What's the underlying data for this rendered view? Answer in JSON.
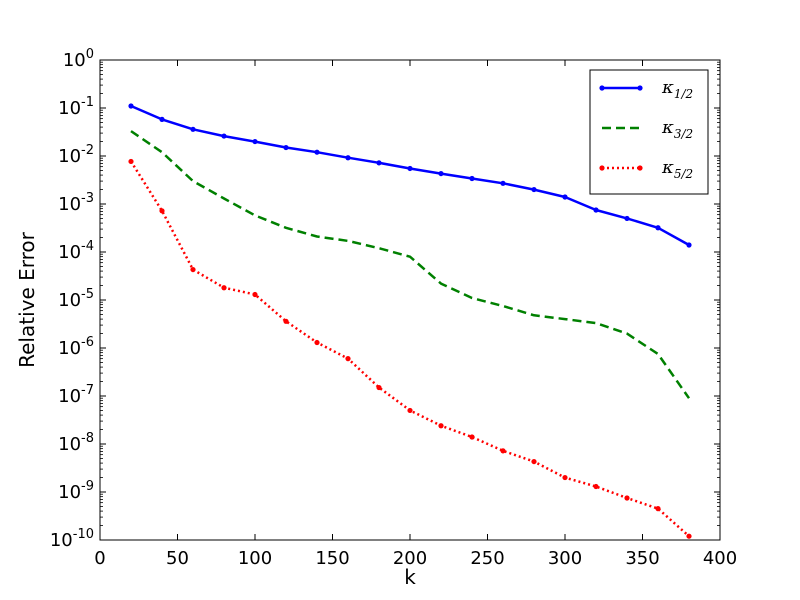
{
  "chart_data": {
    "type": "line",
    "title": "",
    "xlabel": "k",
    "ylabel": "Relative Error",
    "xlim": [
      0,
      400
    ],
    "ylim": [
      1e-10,
      1
    ],
    "yscale": "log",
    "grid": false,
    "legend_position": "top-right",
    "x_ticks": [
      0,
      50,
      100,
      150,
      200,
      250,
      300,
      350,
      400
    ],
    "y_ticks": [
      {
        "value": 1.0,
        "base": "10",
        "exp": "0"
      },
      {
        "value": 0.1,
        "base": "10",
        "exp": "-1"
      },
      {
        "value": 0.01,
        "base": "10",
        "exp": "-2"
      },
      {
        "value": 0.001,
        "base": "10",
        "exp": "-3"
      },
      {
        "value": 0.0001,
        "base": "10",
        "exp": "-4"
      },
      {
        "value": 1e-05,
        "base": "10",
        "exp": "-5"
      },
      {
        "value": 1e-06,
        "base": "10",
        "exp": "-6"
      },
      {
        "value": 1e-07,
        "base": "10",
        "exp": "-7"
      },
      {
        "value": 1e-08,
        "base": "10",
        "exp": "-8"
      },
      {
        "value": 1e-09,
        "base": "10",
        "exp": "-9"
      },
      {
        "value": 1e-10,
        "base": "10",
        "exp": "-10"
      }
    ],
    "x": [
      20,
      40,
      60,
      80,
      100,
      120,
      140,
      160,
      180,
      200,
      220,
      240,
      260,
      280,
      300,
      320,
      340,
      360,
      380
    ],
    "series": [
      {
        "name": "κ1/2",
        "legend_main": "κ",
        "legend_sub": "1/2",
        "color": "#0000ff",
        "style": "solid",
        "markers": true,
        "values": [
          0.11,
          0.058,
          0.036,
          0.026,
          0.02,
          0.015,
          0.012,
          0.0092,
          0.0072,
          0.0055,
          0.0043,
          0.0034,
          0.0027,
          0.002,
          0.0014,
          0.00075,
          0.0005,
          0.00032,
          0.00014
        ]
      },
      {
        "name": "κ3/2",
        "legend_main": "κ",
        "legend_sub": "3/2",
        "color": "#008000",
        "style": "dashed",
        "markers": false,
        "values": [
          0.033,
          0.012,
          0.003,
          0.0013,
          0.00058,
          0.00032,
          0.00021,
          0.00017,
          0.00012,
          8e-05,
          2.2e-05,
          1.1e-05,
          7.5e-06,
          4.8e-06,
          4e-06,
          3.3e-06,
          2e-06,
          7.5e-07,
          9e-08
        ]
      },
      {
        "name": "κ5/2",
        "legend_main": "κ",
        "legend_sub": "5/2",
        "color": "#ff0000",
        "style": "dotted",
        "markers": true,
        "values": [
          0.0077,
          0.00072,
          4.3e-05,
          1.8e-05,
          1.3e-05,
          3.6e-06,
          1.3e-06,
          6e-07,
          1.5e-07,
          5e-08,
          2.4e-08,
          1.4e-08,
          7.2e-09,
          4.3e-09,
          2e-09,
          1.3e-09,
          7.5e-10,
          4.5e-10,
          1.2e-10
        ]
      }
    ]
  }
}
